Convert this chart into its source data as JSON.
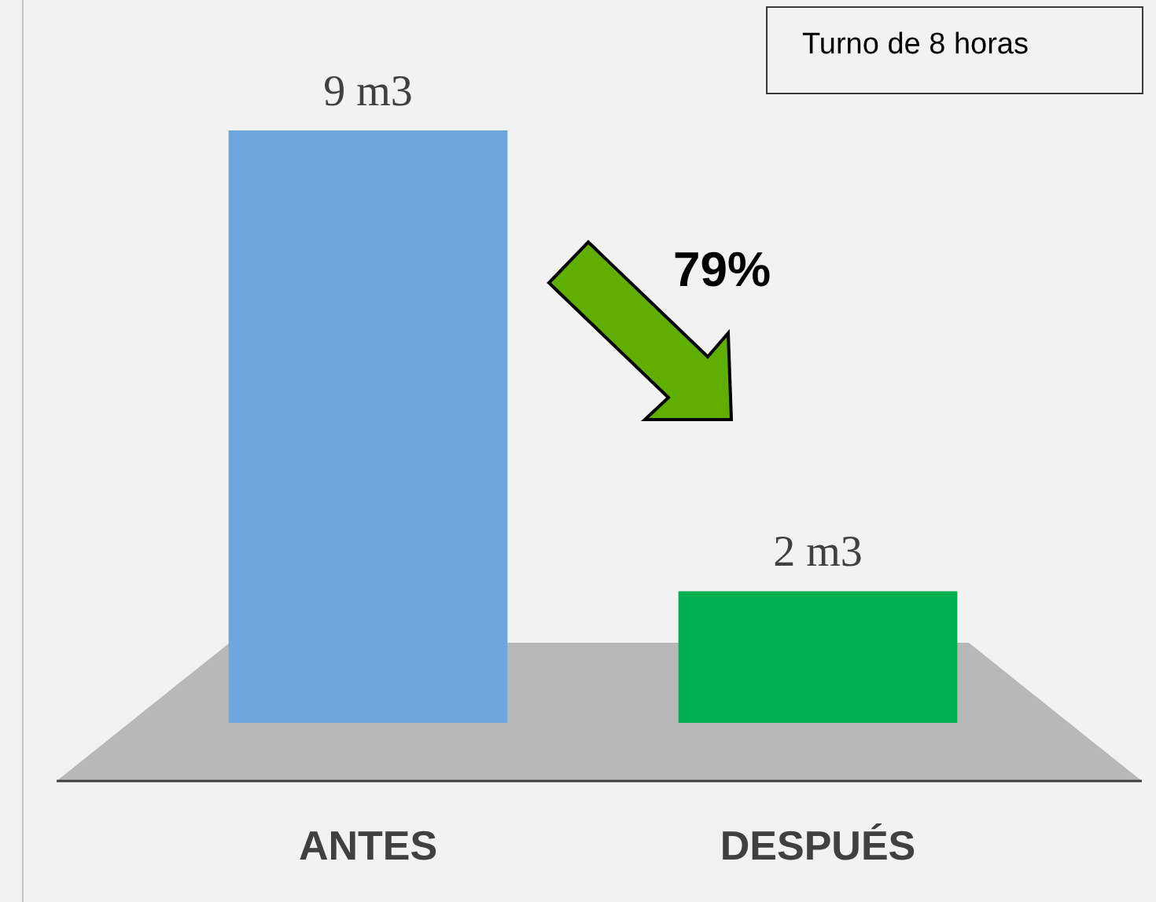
{
  "chart_data": {
    "type": "bar",
    "categories": [
      "ANTES",
      "DESPUÉS"
    ],
    "values": [
      9,
      2
    ],
    "colors": [
      "#6fa6de",
      "#00b050"
    ],
    "value_labels": [
      "9 m3",
      "2 m3"
    ],
    "annotations": [
      "Turno de 8 horas",
      "79%"
    ],
    "tick_labels": "x"
  }
}
